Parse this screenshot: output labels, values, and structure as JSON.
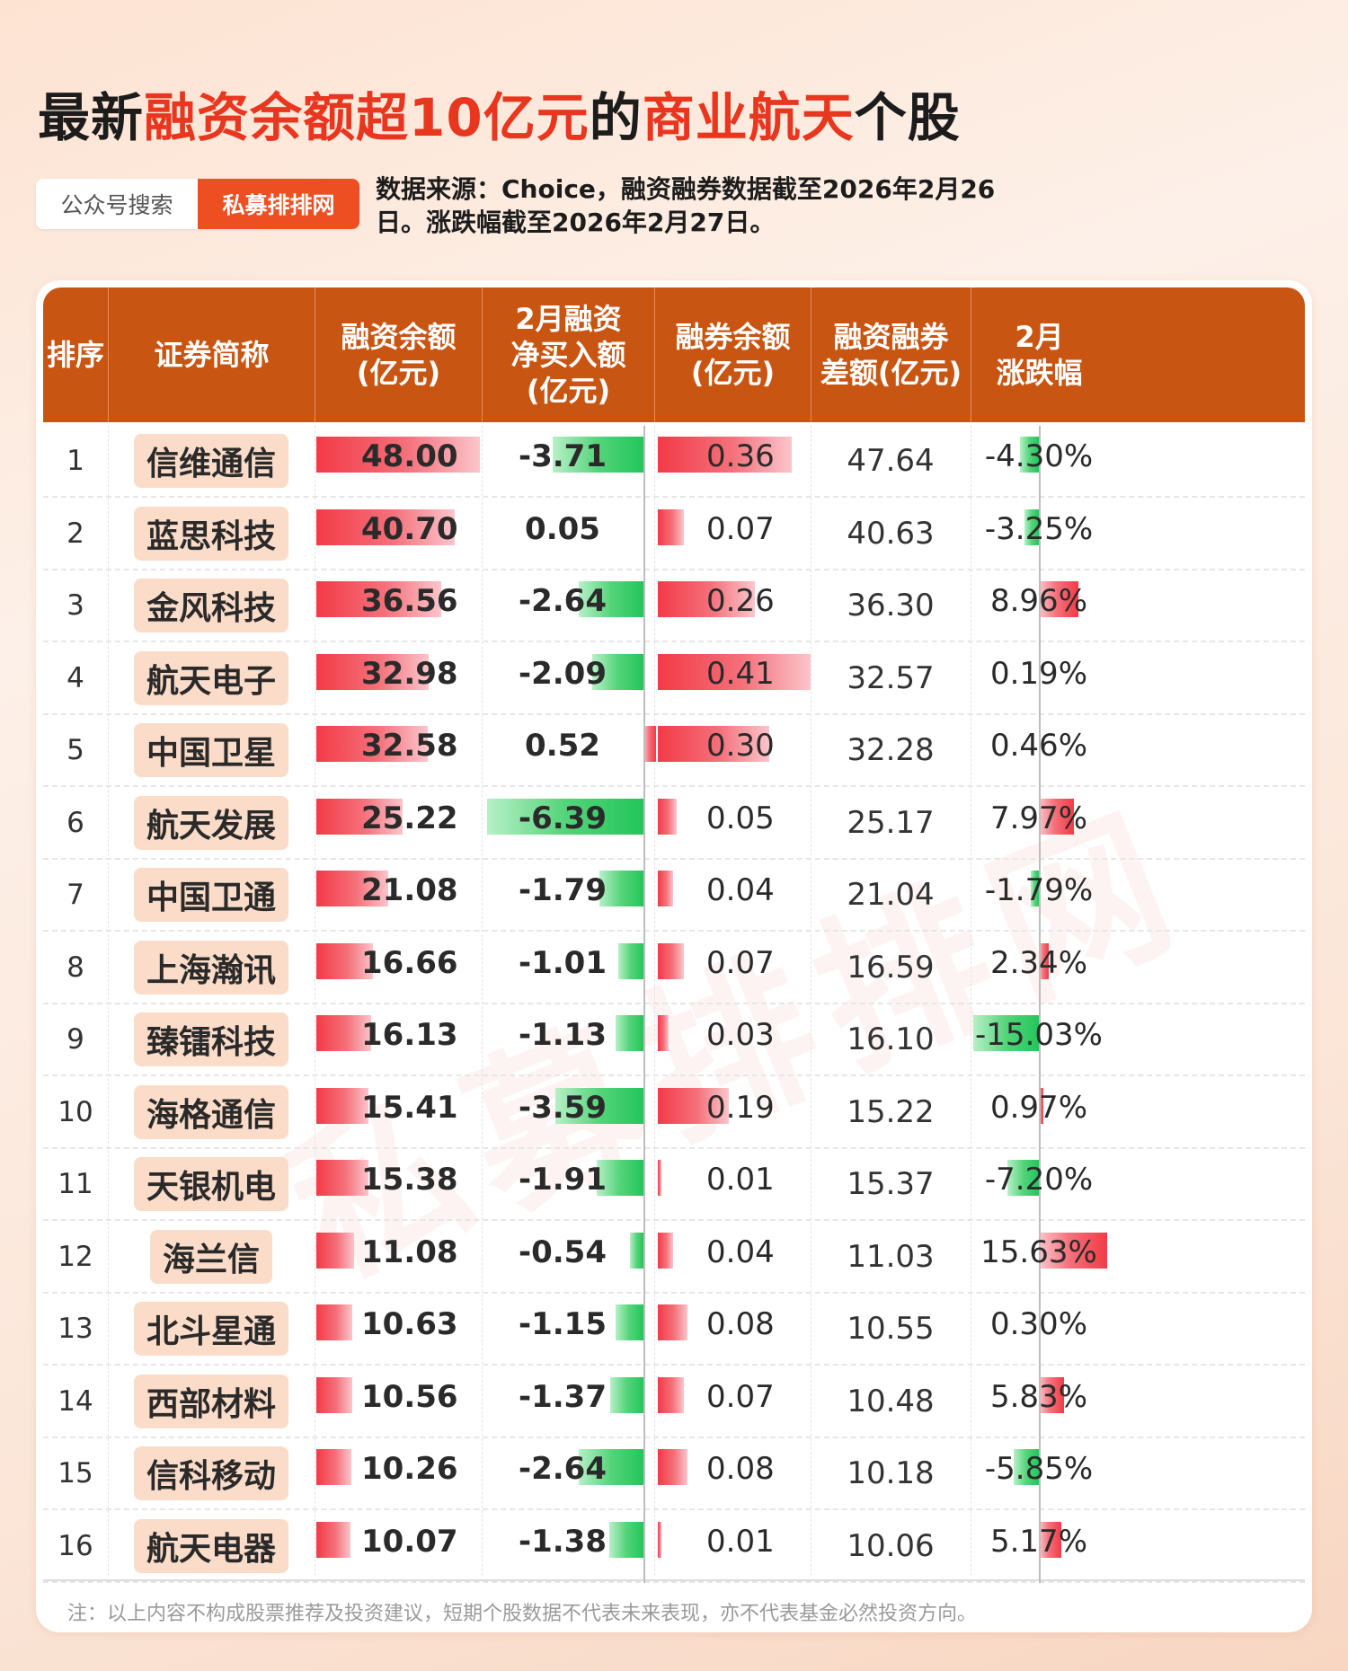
{
  "title": {
    "p1": "最新",
    "p2": "融资余额超10亿元",
    "p3": "的",
    "p4": "商业航天",
    "p5": "个股"
  },
  "tag": {
    "left": "公众号搜索",
    "right": "私募排排网"
  },
  "source": "数据来源：Choice，融资融券数据截至2026年2月26日。涨跌幅截至2026年2月27日。",
  "watermark": "私募排排网",
  "footnote": "注：以上内容不构成股票推荐及投资建议，短期个股数据不代表未来表现，亦不代表基金必然投资方向。",
  "chart_data": {
    "type": "table",
    "columns": [
      "排序",
      "证券简称",
      "融资余额\n(亿元)",
      "2月融资\n净买入额\n(亿元)",
      "融券余额\n(亿元)",
      "融资融券\n差额(亿元)",
      "2月\n涨跌幅"
    ],
    "rows": [
      {
        "rank": "1",
        "name": "信维通信",
        "margin": "48.00",
        "net_buy": "-3.71",
        "short": "0.36",
        "diff": "47.64",
        "change": "-4.30%"
      },
      {
        "rank": "2",
        "name": "蓝思科技",
        "margin": "40.70",
        "net_buy": "0.05",
        "short": "0.07",
        "diff": "40.63",
        "change": "-3.25%"
      },
      {
        "rank": "3",
        "name": "金风科技",
        "margin": "36.56",
        "net_buy": "-2.64",
        "short": "0.26",
        "diff": "36.30",
        "change": "8.96%"
      },
      {
        "rank": "4",
        "name": "航天电子",
        "margin": "32.98",
        "net_buy": "-2.09",
        "short": "0.41",
        "diff": "32.57",
        "change": "0.19%"
      },
      {
        "rank": "5",
        "name": "中国卫星",
        "margin": "32.58",
        "net_buy": "0.52",
        "short": "0.30",
        "diff": "32.28",
        "change": "0.46%"
      },
      {
        "rank": "6",
        "name": "航天发展",
        "margin": "25.22",
        "net_buy": "-6.39",
        "short": "0.05",
        "diff": "25.17",
        "change": "7.97%"
      },
      {
        "rank": "7",
        "name": "中国卫通",
        "margin": "21.08",
        "net_buy": "-1.79",
        "short": "0.04",
        "diff": "21.04",
        "change": "-1.79%"
      },
      {
        "rank": "8",
        "name": "上海瀚讯",
        "margin": "16.66",
        "net_buy": "-1.01",
        "short": "0.07",
        "diff": "16.59",
        "change": "2.34%"
      },
      {
        "rank": "9",
        "name": "臻镭科技",
        "margin": "16.13",
        "net_buy": "-1.13",
        "short": "0.03",
        "diff": "16.10",
        "change": "-15.03%"
      },
      {
        "rank": "10",
        "name": "海格通信",
        "margin": "15.41",
        "net_buy": "-3.59",
        "short": "0.19",
        "diff": "15.22",
        "change": "0.97%"
      },
      {
        "rank": "11",
        "name": "天银机电",
        "margin": "15.38",
        "net_buy": "-1.91",
        "short": "0.01",
        "diff": "15.37",
        "change": "-7.20%"
      },
      {
        "rank": "12",
        "name": "海兰信",
        "margin": "11.08",
        "net_buy": "-0.54",
        "short": "0.04",
        "diff": "11.03",
        "change": "15.63%"
      },
      {
        "rank": "13",
        "name": "北斗星通",
        "margin": "10.63",
        "net_buy": "-1.15",
        "short": "0.08",
        "diff": "10.55",
        "change": "0.30%"
      },
      {
        "rank": "14",
        "name": "西部材料",
        "margin": "10.56",
        "net_buy": "-1.37",
        "short": "0.07",
        "diff": "10.48",
        "change": "5.83%"
      },
      {
        "rank": "15",
        "name": "信科移动",
        "margin": "10.26",
        "net_buy": "-2.64",
        "short": "0.08",
        "diff": "10.18",
        "change": "-5.85%"
      },
      {
        "rank": "16",
        "name": "航天电器",
        "margin": "10.07",
        "net_buy": "-1.38",
        "short": "0.01",
        "diff": "10.06",
        "change": "5.17%"
      }
    ]
  }
}
